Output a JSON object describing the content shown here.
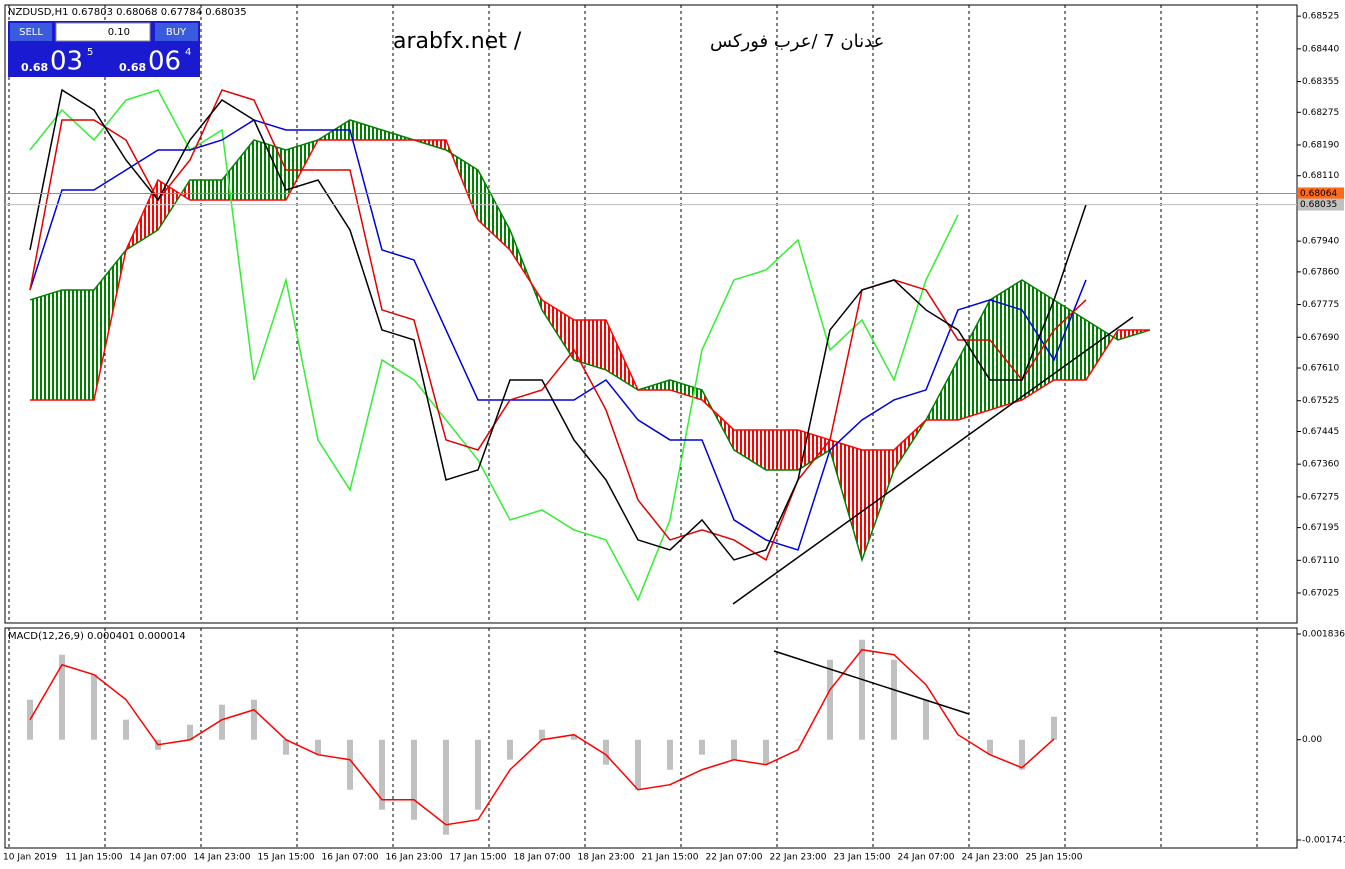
{
  "chart_data": [
    {
      "type": "ichimoku",
      "title": "NZDUSD,H1 0.67803 0.68068 0.67784 0.68035",
      "ylim": [
        0.66947,
        0.68554
      ],
      "yticks": [
        0.68525,
        {
          "value": 0.6844,
          "label": "0.68440"
        },
        0.68355,
        0.68275,
        {
          "value": 0.6819,
          "label": "0.68190"
        },
        {
          "value": 0.6811,
          "label": "0.68110"
        },
        {
          "value": 0.6794,
          "label": "0.67940"
        },
        {
          "value": 0.6786,
          "label": "0.67860"
        },
        0.67775,
        {
          "value": 0.6769,
          "label": "0.67690"
        },
        {
          "value": 0.6761,
          "label": "0.67610"
        },
        0.67525,
        0.67445,
        {
          "value": 0.6736,
          "label": "0.67360"
        },
        0.67275,
        0.67195,
        {
          "value": 0.6711,
          "label": "0.67110"
        },
        0.67025
      ],
      "price_lines": [
        {
          "value": 0.68064,
          "color": "#ff6a1a"
        },
        {
          "value": 0.68035,
          "color": "#c0c0c0"
        }
      ],
      "series": [
        {
          "kind": "cloud_a",
          "color": "#008000",
          "values": [
            0.67787,
            0.67813,
            0.67813,
            0.67917,
            0.67969,
            0.68099,
            0.68099,
            0.68203,
            0.68177,
            0.68203,
            0.68255,
            0.68229,
            0.68203,
            0.68177,
            0.68125,
            0.67969,
            0.67761,
            0.67631,
            0.67605,
            0.67553,
            0.67579,
            0.67553,
            0.67397,
            0.67345,
            0.67345,
            0.67397,
            0.67111,
            0.67345,
            0.67475,
            0.67631,
            0.67787,
            0.67839,
            0.67787,
            0.67735,
            0.67683,
            0.67709
          ]
        },
        {
          "kind": "cloud_b",
          "color": "#ff0000",
          "values": [
            0.67527,
            0.67527,
            0.67527,
            0.67917,
            0.68099,
            0.68047,
            0.68047,
            0.68047,
            0.68047,
            0.68203,
            0.68203,
            0.68203,
            0.68203,
            0.68203,
            0.67995,
            0.67917,
            0.67787,
            0.67735,
            0.67735,
            0.67553,
            0.67553,
            0.67527,
            0.67449,
            0.67449,
            0.67449,
            0.67423,
            0.67397,
            0.67397,
            0.67475,
            0.67475,
            0.67501,
            0.67527,
            0.67579,
            0.67579,
            0.67709,
            0.67709
          ]
        },
        {
          "kind": "line",
          "color": "#33ee33",
          "values": [
            0.68177,
            0.68281,
            0.68203,
            0.68307,
            0.68333,
            0.68177,
            0.68229,
            0.67579,
            0.67839,
            0.67423,
            0.67293,
            0.67631,
            0.67579,
            0.67475,
            0.67371,
            0.67215,
            0.67241,
            0.67189,
            0.67163,
            0.67007,
            0.67215,
            0.67657,
            0.67839,
            0.67865,
            0.67943,
            0.67657,
            0.67735,
            0.67579,
            0.67839,
            0.68008,
            null,
            null,
            null,
            null,
            null,
            null
          ]
        },
        {
          "kind": "line",
          "color": "#0000dd",
          "values": [
            0.67813,
            0.68073,
            0.68073,
            0.68125,
            0.68177,
            0.68177,
            0.68203,
            0.68255,
            0.68229,
            0.68229,
            0.68229,
            0.67917,
            0.67891,
            0.67709,
            0.67527,
            0.67527,
            0.67527,
            0.67527,
            0.67579,
            0.67475,
            0.67423,
            0.67423,
            0.67215,
            0.67163,
            0.67137,
            0.67397,
            0.67475,
            0.67527,
            0.67553,
            0.67761,
            0.67787,
            0.67761,
            0.67631,
            0.67839,
            null,
            null
          ]
        },
        {
          "kind": "line",
          "color": "#e00000",
          "values": [
            0.67813,
            0.68255,
            0.68255,
            0.68203,
            0.68047,
            0.68151,
            0.68333,
            0.68307,
            0.68125,
            0.68125,
            0.68125,
            0.67761,
            0.67735,
            0.67423,
            0.67397,
            0.67527,
            0.67553,
            0.67657,
            0.67501,
            0.67267,
            0.67163,
            0.67189,
            0.67163,
            0.67111,
            0.67319,
            0.67423,
            0.67813,
            0.67839,
            0.67813,
            0.67683,
            0.67683,
            0.67579,
            0.67709,
            0.67787,
            null,
            null
          ]
        },
        {
          "kind": "line",
          "color": "#000000",
          "values": [
            0.67917,
            0.68333,
            0.68281,
            0.68151,
            0.68047,
            0.68203,
            0.68307,
            0.68255,
            0.68073,
            0.68099,
            0.67969,
            0.67709,
            0.67683,
            0.67319,
            0.67345,
            0.67579,
            0.67579,
            0.67423,
            0.67319,
            0.67163,
            0.67137,
            0.67215,
            0.67111,
            0.67137,
            0.67319,
            0.67709,
            0.67813,
            0.67839,
            0.67761,
            0.67709,
            0.67579,
            0.67579,
            0.67787,
            0.68035,
            null,
            null
          ]
        }
      ]
    },
    {
      "type": "macd",
      "title": "MACD(12,26,9) 0.000401 0.000014",
      "categories": [
        "10 Jan 2019",
        null,
        "11 Jan 15:00",
        null,
        "14 Jan 07:00",
        null,
        "14 Jan 23:00",
        null,
        "15 Jan 15:00",
        null,
        "16 Jan 07:00",
        null,
        "16 Jan 23:00",
        null,
        "17 Jan 15:00",
        null,
        "18 Jan 07:00",
        null,
        "18 Jan 23:00",
        null,
        "21 Jan 15:00",
        null,
        "22 Jan 07:00",
        null,
        "22 Jan 23:00",
        null,
        "23 Jan 15:00",
        null,
        "24 Jan 07:00",
        null,
        "24 Jan 23:00",
        null,
        "25 Jan 15:00",
        null,
        null,
        null
      ],
      "ylim": [
        -0.00188,
        0.00194
      ],
      "yticks": [
        0.001836,
        {
          "value": 0,
          "label": "0.00"
        },
        -0.001741
      ],
      "series": [
        {
          "kind": "histogram",
          "color": "#c0c0c0",
          "values": [
            0.000695,
            0.001476,
            0.00113,
            0.000347,
            -0.000174,
            0.00026,
            0.000608,
            0.000695,
            -0.00026,
            -0.00026,
            -0.000868,
            -0.001215,
            -0.00139,
            -0.001649,
            -0.001215,
            -0.000347,
            0.000174,
            8.7e-05,
            -0.000434,
            -0.000868,
            -0.000521,
            -0.00026,
            -0.000347,
            -0.000434,
            0,
            0.001389,
            0.001736,
            0.001389,
            0.000695,
            0,
            -0.00026,
            -0.000521,
            0.000401,
            null,
            null,
            null
          ]
        },
        {
          "kind": "line",
          "color": "#ff0000",
          "values": [
            0.000347,
            0.001302,
            0.00113,
            0.000695,
            -8.7e-05,
            0,
            0.000347,
            0.000521,
            0,
            -0.00026,
            -0.000347,
            -0.001042,
            -0.001042,
            -0.001476,
            -0.001389,
            -0.000521,
            0,
            8.7e-05,
            -0.00026,
            -0.000868,
            -0.000781,
            -0.000521,
            -0.000347,
            -0.000434,
            -0.000174,
            0.000868,
            0.001563,
            0.001476,
            0.000955,
            8.7e-05,
            -0.00026,
            -0.000486,
            1.4e-05,
            null,
            null,
            null
          ]
        }
      ]
    }
  ],
  "trade_panel": {
    "sell": "SELL",
    "buy": "BUY",
    "lot": "0.10",
    "bid": [
      "0.68",
      "03",
      "5"
    ],
    "ask": [
      "0.68",
      "06",
      "4"
    ]
  },
  "watermark": {
    "site": "arabfx.net /",
    "arabic": "عدنان 7 /عرب فوركس"
  }
}
